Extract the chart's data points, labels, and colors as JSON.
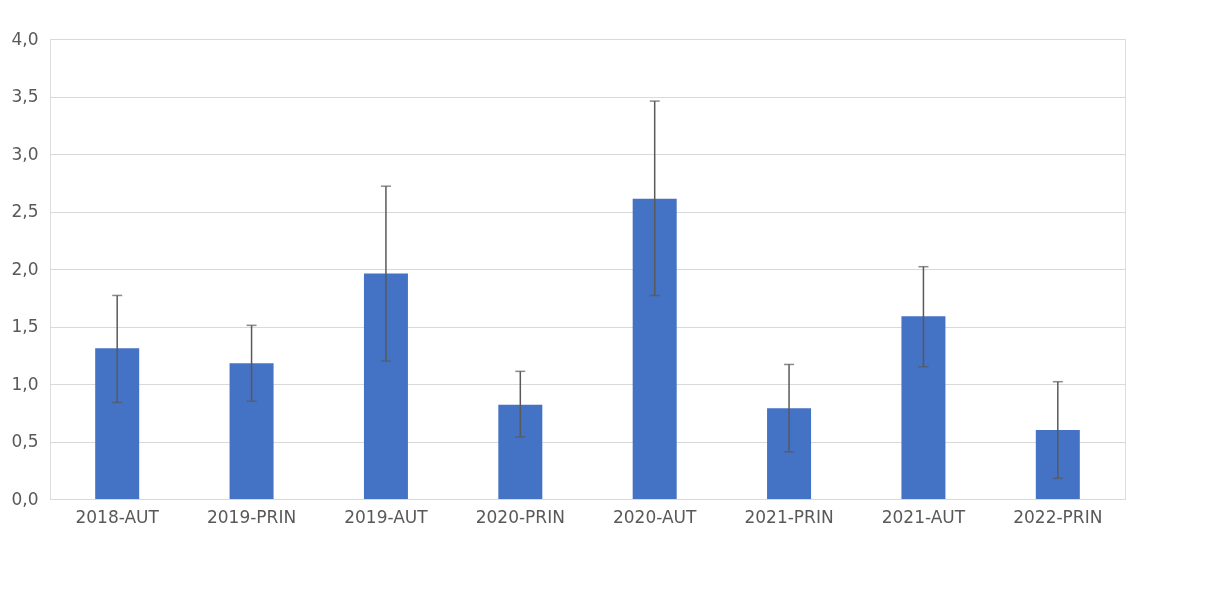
{
  "chart_data": {
    "type": "bar",
    "categories": [
      "2018-AUT",
      "2019-PRIN",
      "2019-AUT",
      "2020-PRIN",
      "2020-AUT",
      "2021-PRIN",
      "2021-AUT",
      "2022-PRIN"
    ],
    "values": [
      1.31,
      1.18,
      1.96,
      0.82,
      2.61,
      0.79,
      1.59,
      0.6
    ],
    "errors": [
      [
        0.84,
        1.77
      ],
      [
        0.85,
        1.51
      ],
      [
        1.2,
        2.72
      ],
      [
        0.54,
        1.11
      ],
      [
        1.77,
        3.46
      ],
      [
        0.41,
        1.17
      ],
      [
        1.15,
        2.02
      ],
      [
        0.18,
        1.02
      ]
    ],
    "color": "#4472c4",
    "ylim": [
      0,
      4
    ],
    "yticks": [
      {
        "value": 0,
        "label": "0,0"
      },
      {
        "value": 0.5,
        "label": "0,5"
      },
      {
        "value": 1,
        "label": "1,0"
      },
      {
        "value": 1.5,
        "label": "1,5"
      },
      {
        "value": 2,
        "label": "2,0"
      },
      {
        "value": 2.5,
        "label": "2,5"
      },
      {
        "value": 3,
        "label": "3,0"
      },
      {
        "value": 3.5,
        "label": "3,5"
      },
      {
        "value": 4,
        "label": "4,0"
      }
    ],
    "grid": "y"
  }
}
